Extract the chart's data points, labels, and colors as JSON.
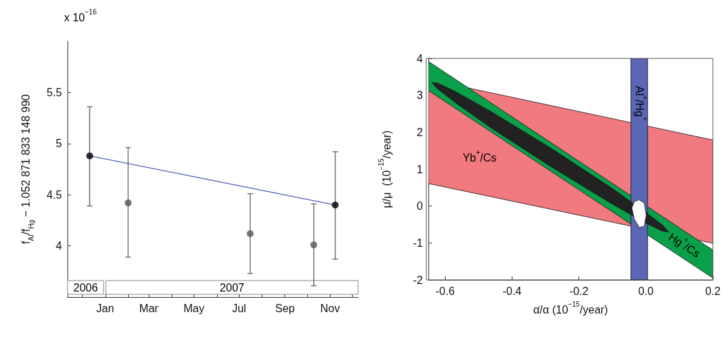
{
  "chart_data": [
    {
      "type": "scatter",
      "ylabel": "f$_{Al}$/f$_{Hg}$ − 1.052 871 833 148 990",
      "annotations": [
        "x 10$^{−16}$"
      ],
      "marker": "circle",
      "xlim": [
        "2006-11-11",
        "2007-12-09"
      ],
      "ylim": [
        3.5,
        6.0
      ],
      "yticks": [
        4,
        4.5,
        5,
        5.5
      ],
      "xticks": [
        {
          "value": "2006-12-01",
          "label": null
        },
        {
          "value": "2007-01-01",
          "label": "Jan"
        },
        {
          "value": "2007-02-01",
          "label": null
        },
        {
          "value": "2007-03-01",
          "label": "Mar"
        },
        {
          "value": "2007-04-01",
          "label": null
        },
        {
          "value": "2007-05-01",
          "label": "May"
        },
        {
          "value": "2007-06-01",
          "label": null
        },
        {
          "value": "2007-07-01",
          "label": "Jul"
        },
        {
          "value": "2007-08-01",
          "label": null
        },
        {
          "value": "2007-09-01",
          "label": "Sep"
        },
        {
          "value": "2007-10-01",
          "label": null
        },
        {
          "value": "2007-11-01",
          "label": "Nov"
        },
        {
          "value": "2007-12-01",
          "label": null
        }
      ],
      "bands": [
        {
          "axis": "x",
          "from": "2006-11-11",
          "to": "2006-12-30",
          "label": "2006"
        },
        {
          "axis": "x",
          "from": "2007-01-02",
          "to": "2007-12-09",
          "label": "2007"
        }
      ],
      "series": [
        {
          "x": [
            "2006-12-11",
            "2007-02-01",
            "2007-07-16",
            "2007-10-10",
            "2007-11-08"
          ],
          "values": [
            4.88,
            4.42,
            4.12,
            4.01,
            4.4
          ],
          "errors": [
            [
              4.39,
              5.36
            ],
            [
              3.89,
              4.96
            ],
            [
              3.73,
              4.51
            ],
            [
              3.61,
              4.41
            ],
            [
              3.87,
              4.92
            ]
          ],
          "colors": [
            "#000000",
            "#555555",
            "#555555",
            "#555555",
            "#000000"
          ]
        },
        {
          "type": "line",
          "x": [
            "2006-12-11",
            "2007-11-08"
          ],
          "values": [
            4.88,
            4.4
          ],
          "color": "#5060c0",
          "marker": "none"
        }
      ]
    },
    {
      "type": "area",
      "xlabel": "α̇/α (10$^{−15}$/year)",
      "ylabel": "μ̇/μ  (10$^{−15}$/year)",
      "xlim": [
        -0.65,
        0.2
      ],
      "ylim": [
        -2,
        4
      ],
      "xticks": [
        -0.6,
        -0.4,
        -0.2,
        {
          "value": 0,
          "label": "0.0"
        },
        0.2
      ],
      "yticks": [
        -2,
        -1,
        0,
        1,
        2,
        3,
        4
      ],
      "annotations": [
        "Yb$^{+}$/Cs",
        "Hg$^{+}$/Cs"
      ],
      "bands": [
        {
          "axis": "x",
          "from": -0.045,
          "to": 0.005,
          "label": "Al$^{+}$/Hg$^{+}$",
          "color": "#5b67b5"
        }
      ],
      "series": [
        {
          "color": "#f07a80",
          "x": [
            -0.65,
            0.2
          ],
          "values": [
            null,
            null
          ],
          "lower": [
            0.61,
            -1.01
          ],
          "upper": [
            3.43,
            1.79
          ]
        },
        {
          "color": "#0aa04a",
          "x": [
            -0.65,
            0.2
          ],
          "values": [
            null,
            null
          ],
          "lower": [
            3.13,
            -1.95
          ],
          "upper": [
            3.92,
            -1.19
          ]
        },
        {
          "color": "#222222",
          "x": [
            -0.64,
            -0.622,
            -0.569,
            -0.463,
            -0.286,
            -0.109,
            -0.003,
            0.05,
            0.068
          ],
          "values": [
            null,
            null,
            null,
            null,
            null,
            null,
            null,
            null,
            null
          ],
          "lower": [
            3.35,
            3.17,
            2.8,
            2.12,
            1.08,
            0.1,
            -0.45,
            -0.68,
            -0.7
          ],
          "upper": [
            3.35,
            3.33,
            3.1,
            2.56,
            1.58,
            0.53,
            -0.15,
            -0.52,
            -0.7
          ]
        },
        {
          "color": "#ffffff",
          "x": [
            -0.042,
            -0.035,
            -0.02,
            -0.005,
            0.001
          ],
          "values": [
            null,
            null,
            null,
            null,
            null
          ],
          "lower": [
            -0.05,
            -0.35,
            -0.58,
            -0.55,
            -0.25
          ],
          "upper": [
            -0.05,
            0.12,
            0.17,
            0.08,
            -0.25
          ]
        }
      ]
    }
  ]
}
